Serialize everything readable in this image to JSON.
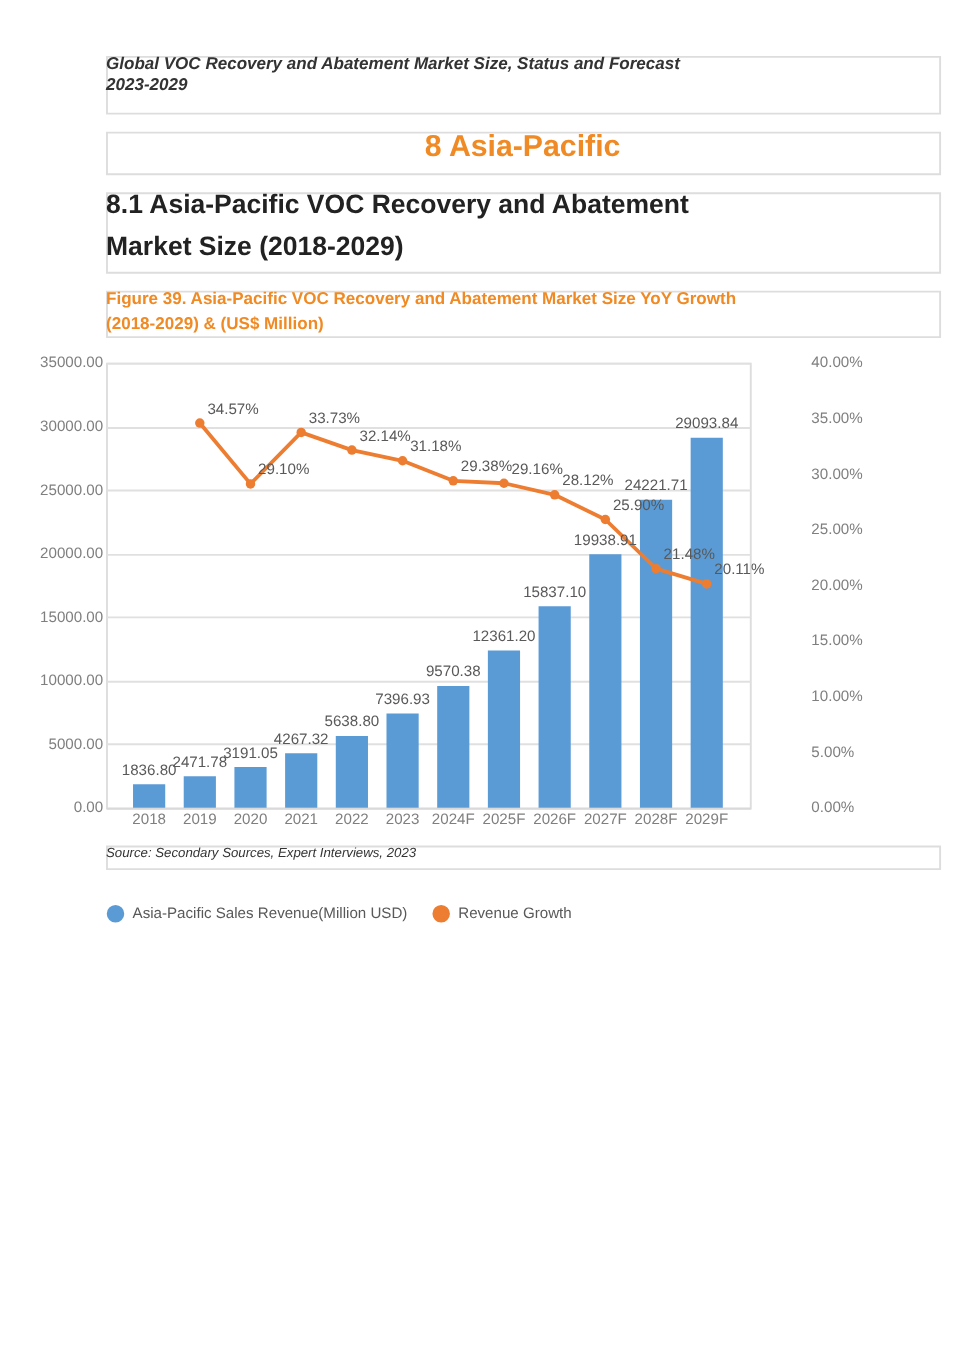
{
  "chart_data": {
    "type": "bar",
    "title": "Figure 39.   Asia-Pacific VOC Recovery and Abatement Market Size YoY Growth (2018-2029) & (US$ Million)",
    "annotations": [
      "Global VOC Recovery and Abatement Market Size, Status and Forecast 2023-2029",
      "8  Asia-Pacific",
      "8.1  Asia-Pacific VOC Recovery and Abatement Market Size (2018-2029)",
      "Source: Secondary Sources, Expert Interviews, 2023"
    ],
    "categories": [
      "2018",
      "2019",
      "2020",
      "2021",
      "2022",
      "2023",
      "2024F",
      "2025F",
      "2026F",
      "2027F",
      "2028F",
      "2029F"
    ],
    "series": [
      {
        "name": "Asia-Pacific Sales Revenue(Million USD)",
        "type": "bar",
        "color": "#5b9bd5",
        "values": [
          1836.8,
          2471.78,
          3191.05,
          4267.32,
          5638.8,
          7396.93,
          9570.38,
          12361.2,
          15837.1,
          19938.91,
          24221.71,
          29093.84
        ],
        "value_labels": [
          "1836.80",
          "2471.78",
          "3191.05",
          "4267.32",
          "5638.80",
          "7396.93",
          "9570.38",
          "12361.20",
          "15837.10",
          "19938.91",
          "24221.71",
          "29093.84"
        ]
      },
      {
        "name": "Revenue Growth",
        "type": "line",
        "axis": "y2",
        "color": "#ed7d31",
        "values": [
          null,
          34.57,
          29.1,
          33.73,
          32.14,
          31.18,
          29.38,
          29.16,
          28.12,
          25.9,
          21.48,
          20.11
        ],
        "value_labels": [
          null,
          "34.57%",
          "29.10%",
          "33.73%",
          "32.14%",
          "31.18%",
          "29.38%",
          "29.16%",
          "28.12%",
          "25.90%",
          "21.48%",
          "20.11%"
        ]
      }
    ],
    "ylim": [
      0,
      35000
    ],
    "yticks": [
      {
        "value": 0,
        "label": "0.00"
      },
      {
        "value": 5000,
        "label": "5000.00"
      },
      {
        "value": 10000,
        "label": "10000.00"
      },
      {
        "value": 15000,
        "label": "15000.00"
      },
      {
        "value": 20000,
        "label": "20000.00"
      },
      {
        "value": 25000,
        "label": "25000.00"
      },
      {
        "value": 30000,
        "label": "30000.00"
      },
      {
        "value": 35000,
        "label": "35000.00"
      }
    ],
    "y2lim": [
      0,
      40
    ],
    "y2ticks": [
      {
        "value": 0,
        "label": "0.00%"
      },
      {
        "value": 5,
        "label": "5.00%"
      },
      {
        "value": 10,
        "label": "10.00%"
      },
      {
        "value": 15,
        "label": "15.00%"
      },
      {
        "value": 20,
        "label": "20.00%"
      },
      {
        "value": 25,
        "label": "25.00%"
      },
      {
        "value": 30,
        "label": "30.00%"
      },
      {
        "value": 35,
        "label": "35.00%"
      },
      {
        "value": 40,
        "label": "40.00%"
      }
    ],
    "grid": "y",
    "legend": "bottom",
    "marker": "circle",
    "line_style": "solid"
  }
}
